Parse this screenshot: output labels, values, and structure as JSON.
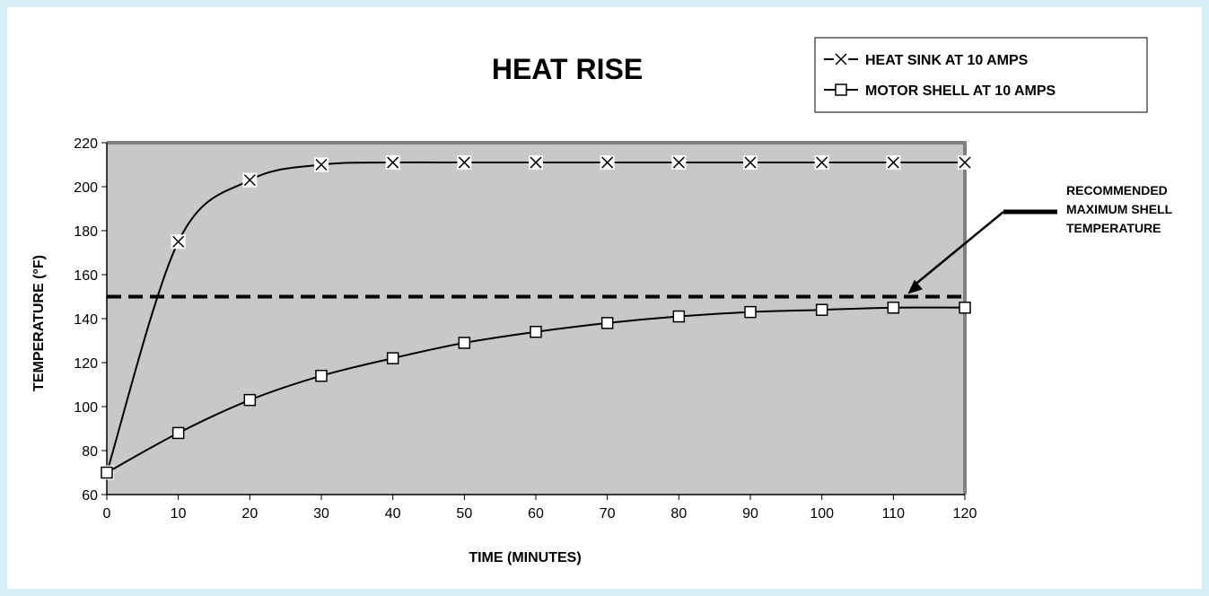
{
  "chart_data": {
    "type": "line",
    "title": "HEAT RISE",
    "xlabel": "TIME (MINUTES)",
    "ylabel": "TEMPERATURE (°F)",
    "xlim": [
      0,
      120
    ],
    "ylim": [
      60,
      220
    ],
    "x_ticks": [
      0,
      10,
      20,
      30,
      40,
      50,
      60,
      70,
      80,
      90,
      100,
      110,
      120
    ],
    "y_ticks": [
      60,
      80,
      100,
      120,
      140,
      160,
      180,
      200,
      220
    ],
    "grid": false,
    "legend_position": "top-right",
    "plot_background": "#c8c8c8",
    "series": [
      {
        "name": "HEAT SINK AT 10 AMPS",
        "marker": "x",
        "x": [
          0,
          10,
          20,
          30,
          40,
          50,
          60,
          70,
          80,
          90,
          100,
          110,
          120
        ],
        "values": [
          70,
          175,
          203,
          210,
          211,
          211,
          211,
          211,
          211,
          211,
          211,
          211,
          211
        ]
      },
      {
        "name": "MOTOR SHELL AT 10 AMPS",
        "marker": "square",
        "x": [
          0,
          10,
          20,
          30,
          40,
          50,
          60,
          70,
          80,
          90,
          100,
          110,
          120
        ],
        "values": [
          70,
          88,
          103,
          114,
          122,
          129,
          134,
          138,
          141,
          143,
          144,
          145,
          145
        ]
      }
    ],
    "reference_line": {
      "y": 150,
      "style": "dashed"
    },
    "annotation": {
      "lines": [
        "RECOMMENDED",
        "MAXIMUM SHELL",
        "TEMPERATURE"
      ],
      "points_to": {
        "x": 112,
        "y": 150
      }
    }
  }
}
